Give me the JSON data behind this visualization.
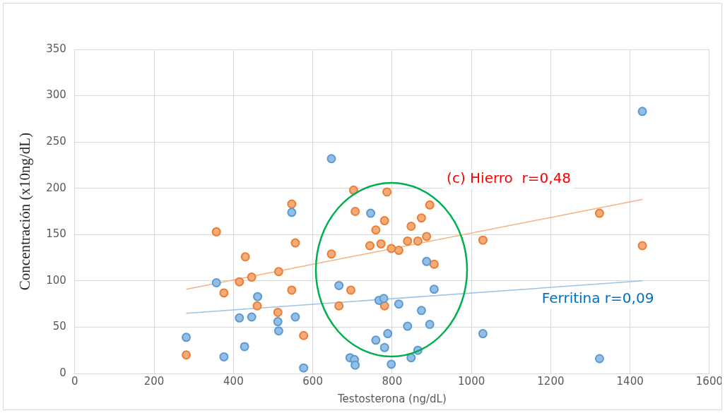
{
  "chart_data": {
    "type": "scatter",
    "xlabel": "Testosterona (ng/dL)",
    "ylabel": "Concentración (x10ng/dL)",
    "xlim": [
      0,
      1600
    ],
    "xticks": [
      0,
      200,
      400,
      600,
      800,
      1000,
      1200,
      1400,
      1600
    ],
    "ylim": [
      0,
      350
    ],
    "yticks": [
      0,
      50,
      100,
      150,
      200,
      250,
      300,
      350
    ],
    "grid": true,
    "legend": false,
    "marker": "circle",
    "annotations": [
      "(c) Hierro  r=0,48",
      "Ferritina r=0,09"
    ],
    "series": [
      {
        "color": "#5b9bd5",
        "x": [
          281,
          376,
          357,
          415,
          428,
          446,
          461,
          512,
          514,
          547,
          556,
          577,
          647,
          666,
          694,
          705,
          707,
          746,
          759,
          767,
          779,
          781,
          789,
          798,
          817,
          839,
          848,
          865,
          874,
          887,
          895,
          906,
          1029,
          1323,
          1431
        ],
        "values": [
          39,
          18,
          98,
          60,
          29,
          61,
          83,
          56,
          46,
          174,
          61,
          6,
          232,
          95,
          17,
          15,
          9,
          173,
          36,
          79,
          81,
          28,
          43,
          10,
          75,
          51,
          17,
          25,
          68,
          121,
          53,
          91,
          43,
          16,
          283
        ]
      },
      {
        "color": "#ed7d31",
        "x": [
          281,
          357,
          376,
          415,
          430,
          446,
          460,
          512,
          514,
          547,
          547,
          556,
          577,
          647,
          666,
          696,
          703,
          707,
          744,
          759,
          772,
          781,
          781,
          787,
          798,
          817,
          839,
          848,
          865,
          874,
          887,
          895,
          906,
          1029,
          1323,
          1431
        ],
        "values": [
          20,
          153,
          87,
          99,
          126,
          104,
          73,
          66,
          110,
          183,
          90,
          141,
          41,
          129,
          73,
          90,
          198,
          175,
          138,
          155,
          140,
          165,
          73,
          196,
          135,
          133,
          143,
          159,
          143,
          168,
          148,
          182,
          118,
          144,
          173,
          138
        ]
      },
      {
        "type": "line",
        "marker": "none",
        "color": "#f4b183",
        "x": [
          281,
          1431
        ],
        "values": [
          91,
          188
        ]
      },
      {
        "type": "line",
        "marker": "none",
        "color": "#9dc3e6",
        "x": [
          281,
          1431
        ],
        "values": [
          65,
          100
        ]
      }
    ]
  }
}
